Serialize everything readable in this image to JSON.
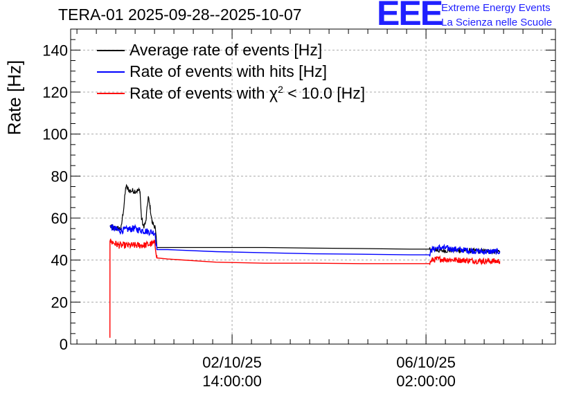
{
  "chart_data": {
    "type": "line",
    "title": "TERA-01 2025-09-28--2025-10-07",
    "ylabel": "Rate [Hz]",
    "xlabel": "",
    "ylim": [
      0,
      150
    ],
    "yticks": [
      0,
      20,
      40,
      60,
      80,
      100,
      120,
      140
    ],
    "xlim": [
      0,
      1
    ],
    "xticks": [
      {
        "x": 0.333,
        "line1": "02/10/25",
        "line2": "14:00:00"
      },
      {
        "x": 0.733,
        "line1": "06/10/25",
        "line2": "02:00:00"
      }
    ],
    "grid": true,
    "series": [
      {
        "name": "Average rate of events [Hz]",
        "legend_prefix": "Average rate of events [Hz]",
        "color": "#000000",
        "points": [
          [
            0.081,
            56
          ],
          [
            0.09,
            55
          ],
          [
            0.104,
            55
          ],
          [
            0.11,
            66
          ],
          [
            0.114,
            75
          ],
          [
            0.118,
            74
          ],
          [
            0.122,
            73
          ],
          [
            0.143,
            73
          ],
          [
            0.146,
            60
          ],
          [
            0.15,
            56
          ],
          [
            0.155,
            58
          ],
          [
            0.16,
            70
          ],
          [
            0.164,
            65
          ],
          [
            0.168,
            58
          ],
          [
            0.174,
            56
          ],
          [
            0.178,
            46
          ],
          [
            0.2,
            46
          ],
          [
            0.3,
            46
          ],
          [
            0.4,
            46
          ],
          [
            0.5,
            45.7
          ],
          [
            0.6,
            45.5
          ],
          [
            0.7,
            45.2
          ],
          [
            0.74,
            45.2
          ],
          [
            0.75,
            45
          ],
          [
            0.76,
            44.5
          ],
          [
            0.8,
            44.7
          ],
          [
            0.85,
            44.2
          ],
          [
            0.885,
            44.3
          ]
        ],
        "noise": [
          [
            0.081,
            0.178,
            1.4
          ],
          [
            0.74,
            0.885,
            1.2
          ]
        ]
      },
      {
        "name": "Rate of events with hits [Hz]",
        "legend_prefix": "Rate of events with hits [Hz]",
        "color": "#0000ff",
        "points": [
          [
            0.081,
            56
          ],
          [
            0.1,
            54
          ],
          [
            0.13,
            55
          ],
          [
            0.15,
            54
          ],
          [
            0.174,
            53
          ],
          [
            0.178,
            45
          ],
          [
            0.2,
            45
          ],
          [
            0.3,
            44
          ],
          [
            0.4,
            43.5
          ],
          [
            0.5,
            43
          ],
          [
            0.6,
            42.8
          ],
          [
            0.7,
            42.5
          ],
          [
            0.74,
            42.5
          ],
          [
            0.745,
            45
          ],
          [
            0.76,
            46
          ],
          [
            0.8,
            45
          ],
          [
            0.85,
            44
          ],
          [
            0.885,
            44
          ]
        ],
        "noise": [
          [
            0.081,
            0.178,
            1.6
          ],
          [
            0.74,
            0.885,
            1.4
          ]
        ]
      },
      {
        "name": "Rate of events with chi2 < 10.0 [Hz]",
        "legend_prefix": "Rate of events with χ",
        "legend_sup": "2",
        "legend_suffix": " < 10.0 [Hz]",
        "color": "#ff0000",
        "points": [
          [
            0.081,
            3
          ],
          [
            0.0812,
            49
          ],
          [
            0.1,
            47
          ],
          [
            0.13,
            47
          ],
          [
            0.15,
            47
          ],
          [
            0.174,
            48
          ],
          [
            0.178,
            41
          ],
          [
            0.2,
            40.5
          ],
          [
            0.3,
            39
          ],
          [
            0.4,
            38.5
          ],
          [
            0.5,
            38.5
          ],
          [
            0.6,
            38.3
          ],
          [
            0.7,
            38.3
          ],
          [
            0.74,
            38.3
          ],
          [
            0.745,
            40
          ],
          [
            0.76,
            40.5
          ],
          [
            0.8,
            40
          ],
          [
            0.85,
            39.5
          ],
          [
            0.885,
            39.5
          ]
        ],
        "noise": [
          [
            0.0815,
            0.178,
            1.6
          ],
          [
            0.74,
            0.885,
            1.4
          ]
        ]
      }
    ]
  },
  "logo": {
    "mark": "EEE",
    "line1": "Extreme Energy Events",
    "line2": "La Scienza nelle Scuole"
  }
}
